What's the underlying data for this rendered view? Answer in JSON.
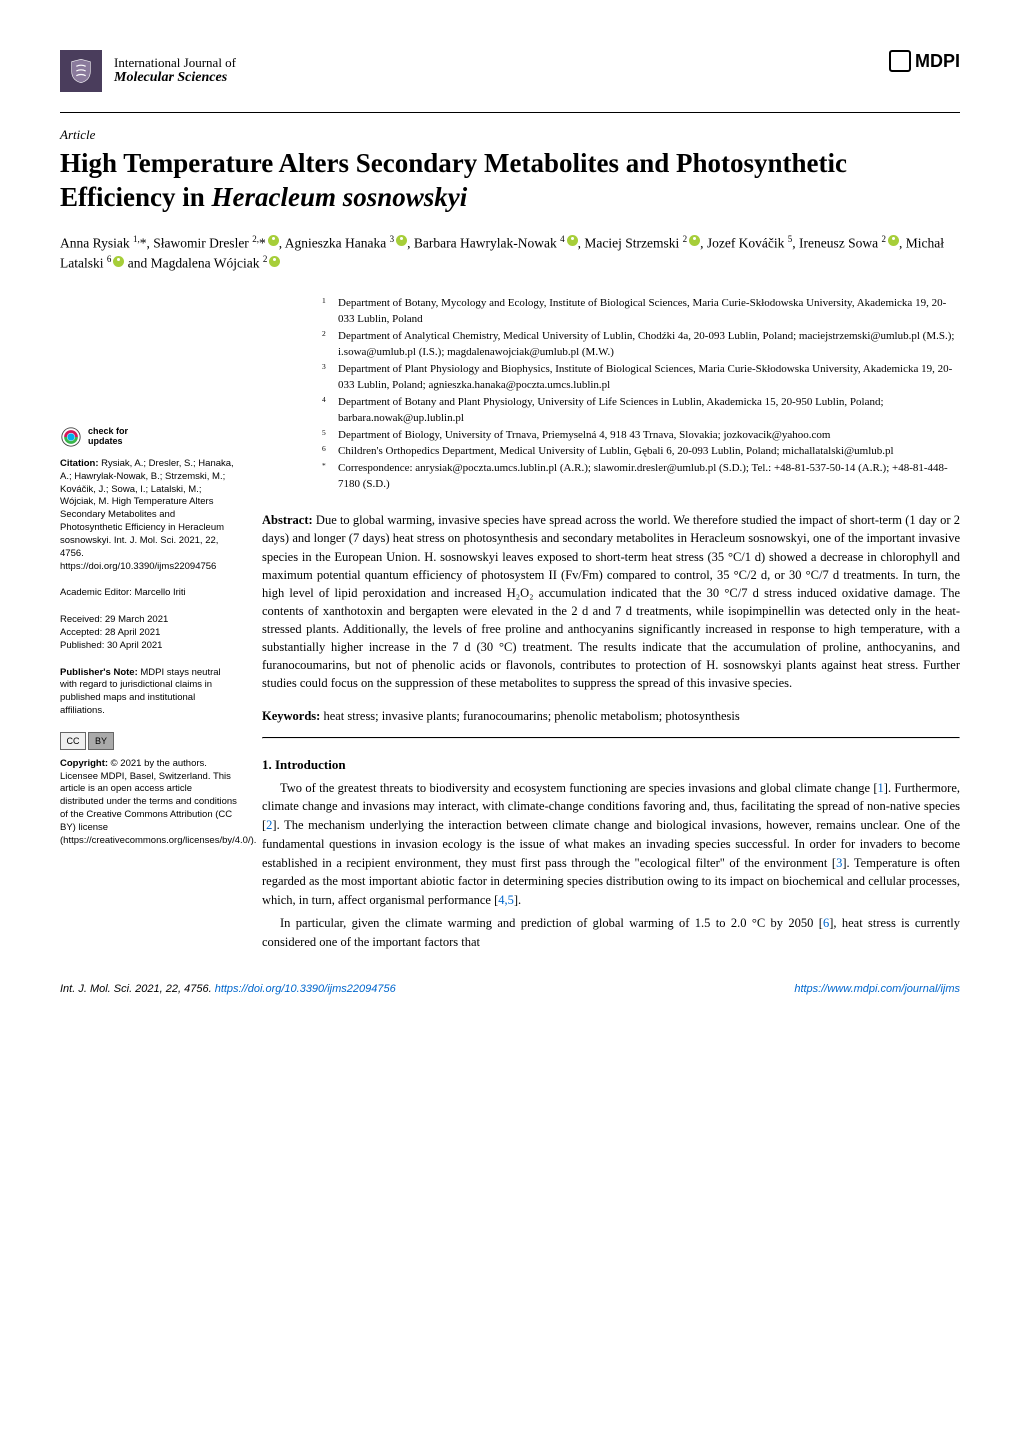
{
  "journal": {
    "line1": "International Journal of",
    "line2": "Molecular Sciences",
    "publisher": "MDPI"
  },
  "article": {
    "type": "Article",
    "title_pre": "High Temperature Alters Secondary Metabolites and Photosynthetic Efficiency in ",
    "title_species": "Heracleum sosnowskyi"
  },
  "authors_html": "Anna Rysiak <sup>1,</sup>*, Sławomir Dresler <sup>2,</sup>*<span class='orcid'></span>, Agnieszka Hanaka <sup>3</sup><span class='orcid'></span>, Barbara Hawrylak-Nowak <sup>4</sup><span class='orcid'></span>, Maciej Strzemski <sup>2</sup><span class='orcid'></span>, Jozef Kováčik <sup>5</sup>, Ireneusz Sowa <sup>2</sup><span class='orcid'></span>, Michał Latalski <sup>6</sup><span class='orcid'></span> and Magdalena Wójciak <sup>2</sup><span class='orcid'></span>",
  "affiliations": [
    {
      "n": "1",
      "t": "Department of Botany, Mycology and Ecology, Institute of Biological Sciences, Maria Curie-Skłodowska University, Akademicka 19, 20-033 Lublin, Poland"
    },
    {
      "n": "2",
      "t": "Department of Analytical Chemistry, Medical University of Lublin, Chodźki 4a, 20-093 Lublin, Poland; maciejstrzemski@umlub.pl (M.S.); i.sowa@umlub.pl (I.S.); magdalenawojciak@umlub.pl (M.W.)"
    },
    {
      "n": "3",
      "t": "Department of Plant Physiology and Biophysics, Institute of Biological Sciences, Maria Curie-Skłodowska University, Akademicka 19, 20-033 Lublin, Poland; agnieszka.hanaka@poczta.umcs.lublin.pl"
    },
    {
      "n": "4",
      "t": "Department of Botany and Plant Physiology, University of Life Sciences in Lublin, Akademicka 15, 20-950 Lublin, Poland; barbara.nowak@up.lublin.pl"
    },
    {
      "n": "5",
      "t": "Department of Biology, University of Trnava, Priemyselná 4, 918 43 Trnava, Slovakia; jozkovacik@yahoo.com"
    },
    {
      "n": "6",
      "t": "Children's Orthopedics Department, Medical University of Lublin, Gębali 6, 20-093 Lublin, Poland; michallatalski@umlub.pl"
    },
    {
      "n": "*",
      "t": "Correspondence: anrysiak@poczta.umcs.lublin.pl (A.R.); slawomir.dresler@umlub.pl (S.D.); Tel.: +48-81-537-50-14 (A.R.); +48-81-448-7180 (S.D.)"
    }
  ],
  "sidebar": {
    "check_updates": "check for\nupdates",
    "citation_label": "Citation:",
    "citation_text": " Rysiak, A.; Dresler, S.; Hanaka, A.; Hawrylak-Nowak, B.; Strzemski, M.; Kováčik, J.; Sowa, I.; Latalski, M.; Wójciak, M. High Temperature Alters Secondary Metabolites and Photosynthetic Efficiency in Heracleum sosnowskyi. Int. J. Mol. Sci. 2021, 22, 4756. https://doi.org/10.3390/ijms22094756",
    "editor_label": "Academic Editor:",
    "editor_text": " Marcello Iriti",
    "received": "Received: 29 March 2021",
    "accepted": "Accepted: 28 April 2021",
    "published": "Published: 30 April 2021",
    "publishers_note_label": "Publisher's Note:",
    "publishers_note_text": " MDPI stays neutral with regard to jurisdictional claims in published maps and institutional affiliations.",
    "copyright_label": "Copyright:",
    "copyright_text": " © 2021 by the authors. Licensee MDPI, Basel, Switzerland. This article is an open access article distributed under the terms and conditions of the Creative Commons Attribution (CC BY) license (https://creativecommons.org/licenses/by/4.0/)."
  },
  "abstract": {
    "label": "Abstract:",
    "text": " Due to global warming, invasive species have spread across the world. We therefore studied the impact of short-term (1 day or 2 days) and longer (7 days) heat stress on photosynthesis and secondary metabolites in Heracleum sosnowskyi, one of the important invasive species in the European Union. H. sosnowskyi leaves exposed to short-term heat stress (35 °C/1 d) showed a decrease in chlorophyll and maximum potential quantum efficiency of photosystem II (Fv/Fm) compared to control, 35 °C/2 d, or 30 °C/7 d treatments. In turn, the high level of lipid peroxidation and increased H₂O₂ accumulation indicated that the 30 °C/7 d stress induced oxidative damage. The contents of xanthotoxin and bergapten were elevated in the 2 d and 7 d treatments, while isopimpinellin was detected only in the heat-stressed plants. Additionally, the levels of free proline and anthocyanins significantly increased in response to high temperature, with a substantially higher increase in the 7 d (30 °C) treatment. The results indicate that the accumulation of proline, anthocyanins, and furanocoumarins, but not of phenolic acids or flavonols, contributes to protection of H. sosnowskyi plants against heat stress. Further studies could focus on the suppression of these metabolites to suppress the spread of this invasive species."
  },
  "keywords": {
    "label": "Keywords:",
    "text": " heat stress; invasive plants; furanocoumarins; phenolic metabolism; photosynthesis"
  },
  "section1": {
    "heading": "1. Introduction",
    "p1": "Two of the greatest threats to biodiversity and ecosystem functioning are species invasions and global climate change [1]. Furthermore, climate change and invasions may interact, with climate-change conditions favoring and, thus, facilitating the spread of non-native species [2]. The mechanism underlying the interaction between climate change and biological invasions, however, remains unclear. One of the fundamental questions in invasion ecology is the issue of what makes an invading species successful. In order for invaders to become established in a recipient environment, they must first pass through the \"ecological filter\" of the environment [3]. Temperature is often regarded as the most important abiotic factor in determining species distribution owing to its impact on biochemical and cellular processes, which, in turn, affect organismal performance [4,5].",
    "p2": "In particular, given the climate warming and prediction of global warming of 1.5 to 2.0 °C by 2050 [6], heat stress is currently considered one of the important factors that"
  },
  "footer": {
    "left_citation": "Int. J. Mol. Sci. 2021, 22, 4756. ",
    "left_doi": "https://doi.org/10.3390/ijms22094756",
    "right": "https://www.mdpi.com/journal/ijms"
  },
  "colors": {
    "background": "#ffffff",
    "text": "#000000",
    "link": "#0066cc",
    "orcid": "#a6ce39",
    "logo_bg": "#4a3d5c"
  }
}
